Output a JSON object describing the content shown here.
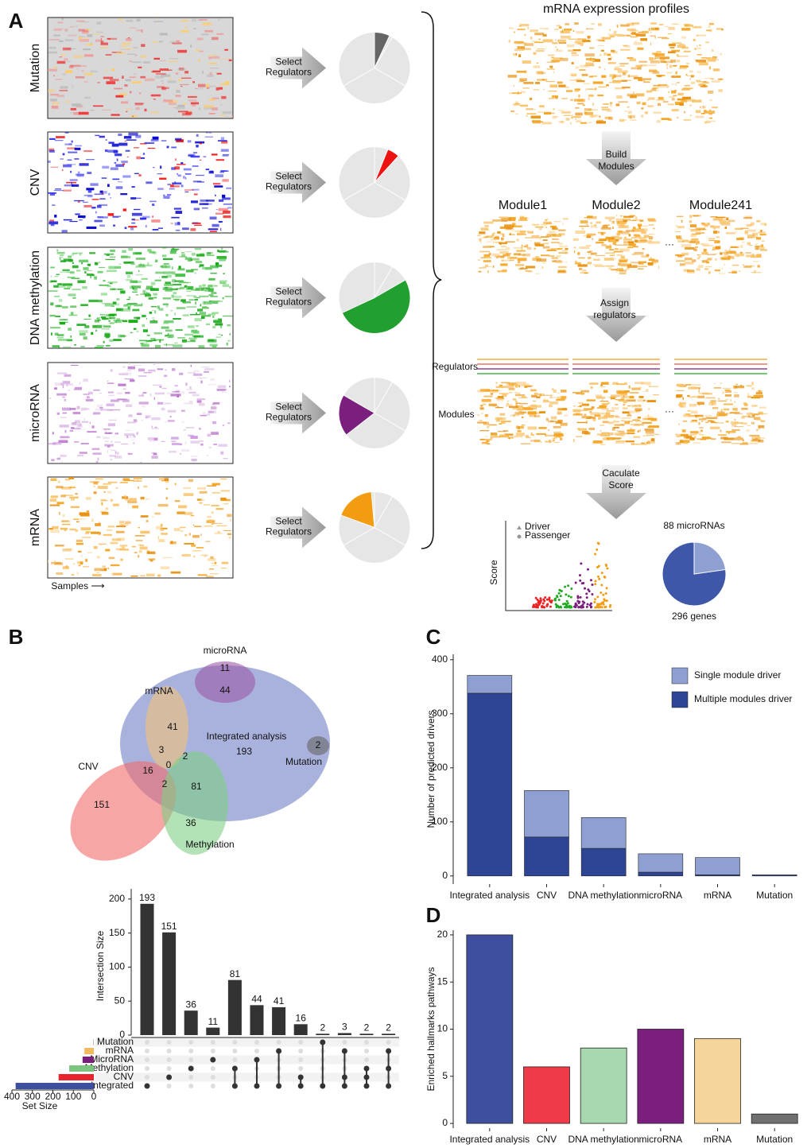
{
  "panel_a": {
    "label": "A",
    "omics": [
      "Mutation",
      "CNV",
      "DNA methylation",
      "microRNA",
      "mRNA"
    ],
    "select_regulators": [
      [
        "Select",
        "Regulators"
      ],
      [
        "Select",
        "Regulators"
      ],
      [
        "Select",
        "Regulators"
      ],
      [
        "Select",
        "Regulators"
      ],
      [
        "Select",
        "Regulators"
      ]
    ],
    "samples": "Samples ⟶",
    "expression_title": "mRNA expression profiles",
    "build_modules": [
      "Build",
      "Modules"
    ],
    "modules": [
      "Module1",
      "Module2",
      "Module241"
    ],
    "assign_regulators": [
      "Assign",
      "regulators"
    ],
    "regulators_label": "Regulators",
    "modules_label": "Modules",
    "calculate_score": [
      "Caculate",
      "Score"
    ],
    "score_legend": [
      "Driver",
      "Passenger"
    ],
    "score_axis": "Score",
    "pie_top": "88 microRNAs",
    "pie_bottom": "296 genes"
  },
  "panel_b": {
    "label": "B",
    "venn": [
      "microRNA",
      11,
      44,
      "mRNA",
      41,
      "Integrated analysis",
      193,
      2,
      "Mutation",
      "CNV",
      3,
      0,
      2,
      16,
      2,
      81,
      151,
      36,
      "Methylation"
    ]
  },
  "panel_c": {
    "label": "C"
  },
  "panel_d": {
    "label": "D"
  },
  "chart_data": [
    {
      "type": "upset",
      "y_label": "Intersection Size",
      "values": [
        193,
        151,
        36,
        11,
        81,
        44,
        41,
        16,
        2,
        3,
        2,
        2
      ],
      "ylim": [
        0,
        215
      ],
      "yticks": [
        0,
        50,
        100,
        150,
        200
      ],
      "sets": [
        "Mutation",
        "mRNA",
        "MicroRNA",
        "Methylation",
        "CNV",
        "Integrated"
      ],
      "set_sizes": [
        2,
        46,
        55,
        120,
        172,
        382
      ],
      "set_colors": [
        "#888888",
        "#f5b960",
        "#7b1f7e",
        "#7cc47f",
        "#e8252e",
        "#3f4fa0"
      ],
      "set_size_label": "Set Size",
      "xlim": [
        400,
        0
      ],
      "xticks": [
        400,
        300,
        200,
        100,
        0
      ],
      "membership": [
        [
          5
        ],
        [
          4
        ],
        [
          3
        ],
        [
          2
        ],
        [
          3,
          5
        ],
        [
          2,
          5
        ],
        [
          1,
          5
        ],
        [
          4,
          5
        ],
        [
          0,
          5
        ],
        [
          1,
          4,
          5
        ],
        [
          3,
          4,
          5
        ],
        [
          1,
          3,
          5
        ]
      ]
    },
    {
      "type": "stacked_bar",
      "y_label": "Number of predicted drivers",
      "categories": [
        "Integrated analysis",
        "CNV",
        "DNA methylation",
        "microRNA",
        "mRNA",
        "Mutation"
      ],
      "series": [
        {
          "name": "Single module driver",
          "color": "#8e9fd1",
          "values": [
            33,
            86,
            57,
            34,
            32,
            0
          ]
        },
        {
          "name": "Multiple modules driver",
          "color": "#2e4596",
          "values": [
            338,
            72,
            51,
            7,
            2,
            2
          ]
        }
      ],
      "ylim": [
        -15,
        410
      ],
      "yticks": [
        0,
        100,
        200,
        300,
        400
      ]
    },
    {
      "type": "bar",
      "y_label": "Enriched hallmarks pathways",
      "categories": [
        "Integrated analysis",
        "CNV",
        "DNA methylation",
        "microRNA",
        "mRNA",
        "Mutation"
      ],
      "values": [
        20,
        6,
        8,
        10,
        9,
        1
      ],
      "colors": [
        "#3f4fa0",
        "#ef3b47",
        "#a8d8b0",
        "#7b1f7e",
        "#f5d59a",
        "#707070"
      ],
      "ylim": [
        -0.5,
        20.5
      ],
      "yticks": [
        0,
        5,
        10,
        15,
        20
      ]
    }
  ]
}
